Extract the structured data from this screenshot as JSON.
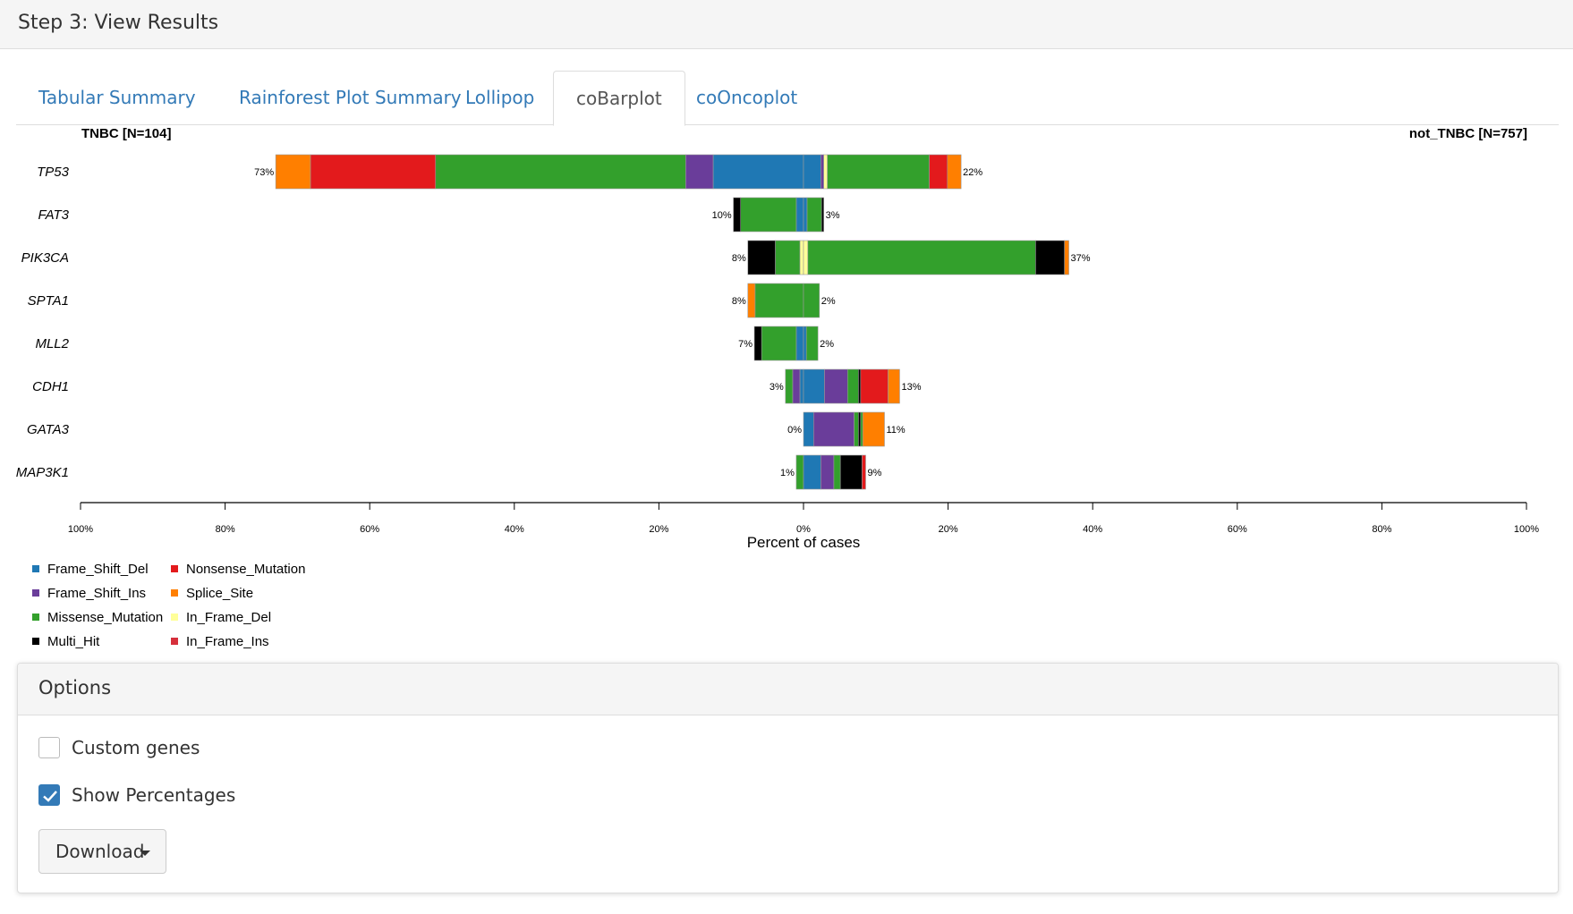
{
  "step_header": {
    "title": "Step 3: View Results"
  },
  "tabs": [
    {
      "label": "Tabular Summary",
      "active": false
    },
    {
      "label": "Rainforest Plot Summary",
      "active": false
    },
    {
      "label": "Lollipop",
      "active": false
    },
    {
      "label": "coBarplot",
      "active": true
    },
    {
      "label": "coOncoplot",
      "active": false
    }
  ],
  "chart_data": {
    "type": "bar",
    "orientation": "horizontal-diverging",
    "left_group": "TNBC [N=104]",
    "right_group": "not_TNBC [N=757]",
    "xlabel": "Percent of cases",
    "xlim": [
      -100,
      100
    ],
    "ticks": [
      {
        "value": -100,
        "label": "100%"
      },
      {
        "value": -80,
        "label": "80%"
      },
      {
        "value": -60,
        "label": "60%"
      },
      {
        "value": -40,
        "label": "40%"
      },
      {
        "value": -20,
        "label": "20%"
      },
      {
        "value": 0,
        "label": "0%"
      },
      {
        "value": 20,
        "label": "20%"
      },
      {
        "value": 40,
        "label": "40%"
      },
      {
        "value": 60,
        "label": "60%"
      },
      {
        "value": 80,
        "label": "80%"
      },
      {
        "value": 100,
        "label": "100%"
      }
    ],
    "colors": {
      "Frame_Shift_Del": "#1f78b4",
      "Frame_Shift_Ins": "#6a3d9a",
      "Missense_Mutation": "#33a02c",
      "Multi_Hit": "#000000",
      "Nonsense_Mutation": "#e31a1c",
      "Splice_Site": "#ff7f00",
      "In_Frame_Del": "#ffff99",
      "In_Frame_Ins": "#d62f3b"
    },
    "genes": [
      {
        "gene": "TP53",
        "left_label": "73%",
        "right_label": "22%",
        "left": [
          {
            "type": "Frame_Shift_Del",
            "value": 12.5
          },
          {
            "type": "Frame_Shift_Ins",
            "value": 3.8
          },
          {
            "type": "Missense_Mutation",
            "value": 34.6
          },
          {
            "type": "Nonsense_Mutation",
            "value": 17.3
          },
          {
            "type": "Splice_Site",
            "value": 4.8
          }
        ],
        "right": [
          {
            "type": "Frame_Shift_Del",
            "value": 2.4
          },
          {
            "type": "Frame_Shift_Ins",
            "value": 0.4
          },
          {
            "type": "In_Frame_Del",
            "value": 0.5
          },
          {
            "type": "Missense_Mutation",
            "value": 14.1
          },
          {
            "type": "Nonsense_Mutation",
            "value": 2.5
          },
          {
            "type": "Splice_Site",
            "value": 1.9
          }
        ]
      },
      {
        "gene": "FAT3",
        "left_label": "10%",
        "right_label": "3%",
        "left": [
          {
            "type": "Frame_Shift_Del",
            "value": 1.0
          },
          {
            "type": "Missense_Mutation",
            "value": 7.7
          },
          {
            "type": "Multi_Hit",
            "value": 1.0
          }
        ],
        "right": [
          {
            "type": "Frame_Shift_Del",
            "value": 0.5
          },
          {
            "type": "Missense_Mutation",
            "value": 2.0
          },
          {
            "type": "Multi_Hit",
            "value": 0.3
          }
        ]
      },
      {
        "gene": "PIK3CA",
        "left_label": "8%",
        "right_label": "37%",
        "left": [
          {
            "type": "In_Frame_Del",
            "value": 0.5
          },
          {
            "type": "Missense_Mutation",
            "value": 3.4
          },
          {
            "type": "Multi_Hit",
            "value": 3.8
          }
        ],
        "right": [
          {
            "type": "In_Frame_Del",
            "value": 0.6
          },
          {
            "type": "Missense_Mutation",
            "value": 31.5
          },
          {
            "type": "Multi_Hit",
            "value": 4.0
          },
          {
            "type": "Splice_Site",
            "value": 0.6
          }
        ]
      },
      {
        "gene": "SPTA1",
        "left_label": "8%",
        "right_label": "2%",
        "left": [
          {
            "type": "Missense_Mutation",
            "value": 6.7
          },
          {
            "type": "Splice_Site",
            "value": 1.0
          }
        ],
        "right": [
          {
            "type": "Missense_Mutation",
            "value": 2.2
          }
        ]
      },
      {
        "gene": "MLL2",
        "left_label": "7%",
        "right_label": "2%",
        "left": [
          {
            "type": "Frame_Shift_Del",
            "value": 1.0
          },
          {
            "type": "Missense_Mutation",
            "value": 4.8
          },
          {
            "type": "Multi_Hit",
            "value": 1.0
          }
        ],
        "right": [
          {
            "type": "Frame_Shift_Del",
            "value": 0.4
          },
          {
            "type": "Missense_Mutation",
            "value": 1.6
          }
        ]
      },
      {
        "gene": "CDH1",
        "left_label": "3%",
        "right_label": "13%",
        "left": [
          {
            "type": "Frame_Shift_Del",
            "value": 0.5
          },
          {
            "type": "Frame_Shift_Ins",
            "value": 1.0
          },
          {
            "type": "Missense_Mutation",
            "value": 1.0
          }
        ],
        "right": [
          {
            "type": "Frame_Shift_Del",
            "value": 2.9
          },
          {
            "type": "Frame_Shift_Ins",
            "value": 3.2
          },
          {
            "type": "Missense_Mutation",
            "value": 1.5
          },
          {
            "type": "Multi_Hit",
            "value": 0.3
          },
          {
            "type": "Nonsense_Mutation",
            "value": 3.8
          },
          {
            "type": "Splice_Site",
            "value": 1.6
          }
        ]
      },
      {
        "gene": "GATA3",
        "left_label": "0%",
        "right_label": "11%",
        "left": [],
        "right": [
          {
            "type": "Frame_Shift_Del",
            "value": 1.4
          },
          {
            "type": "Frame_Shift_Ins",
            "value": 5.6
          },
          {
            "type": "Missense_Mutation",
            "value": 0.6
          },
          {
            "type": "Multi_Hit",
            "value": 0.3
          },
          {
            "type": "Missense_Mutation",
            "value": 0.3
          },
          {
            "type": "Splice_Site",
            "value": 3.0
          }
        ]
      },
      {
        "gene": "MAP3K1",
        "left_label": "1%",
        "right_label": "9%",
        "left": [
          {
            "type": "Missense_Mutation",
            "value": 1.0
          }
        ],
        "right": [
          {
            "type": "Frame_Shift_Del",
            "value": 2.4
          },
          {
            "type": "Frame_Shift_Ins",
            "value": 1.8
          },
          {
            "type": "Missense_Mutation",
            "value": 0.9
          },
          {
            "type": "Multi_Hit",
            "value": 3.0
          },
          {
            "type": "Nonsense_Mutation",
            "value": 0.5
          }
        ]
      }
    ],
    "legend": [
      "Frame_Shift_Del",
      "Frame_Shift_Ins",
      "Missense_Mutation",
      "Multi_Hit",
      "Nonsense_Mutation",
      "Splice_Site",
      "In_Frame_Del",
      "In_Frame_Ins"
    ]
  },
  "options": {
    "title": "Options",
    "custom_genes": {
      "label": "Custom genes",
      "checked": false
    },
    "show_percentages": {
      "label": "Show Percentages",
      "checked": true
    },
    "download_label": "Download"
  }
}
